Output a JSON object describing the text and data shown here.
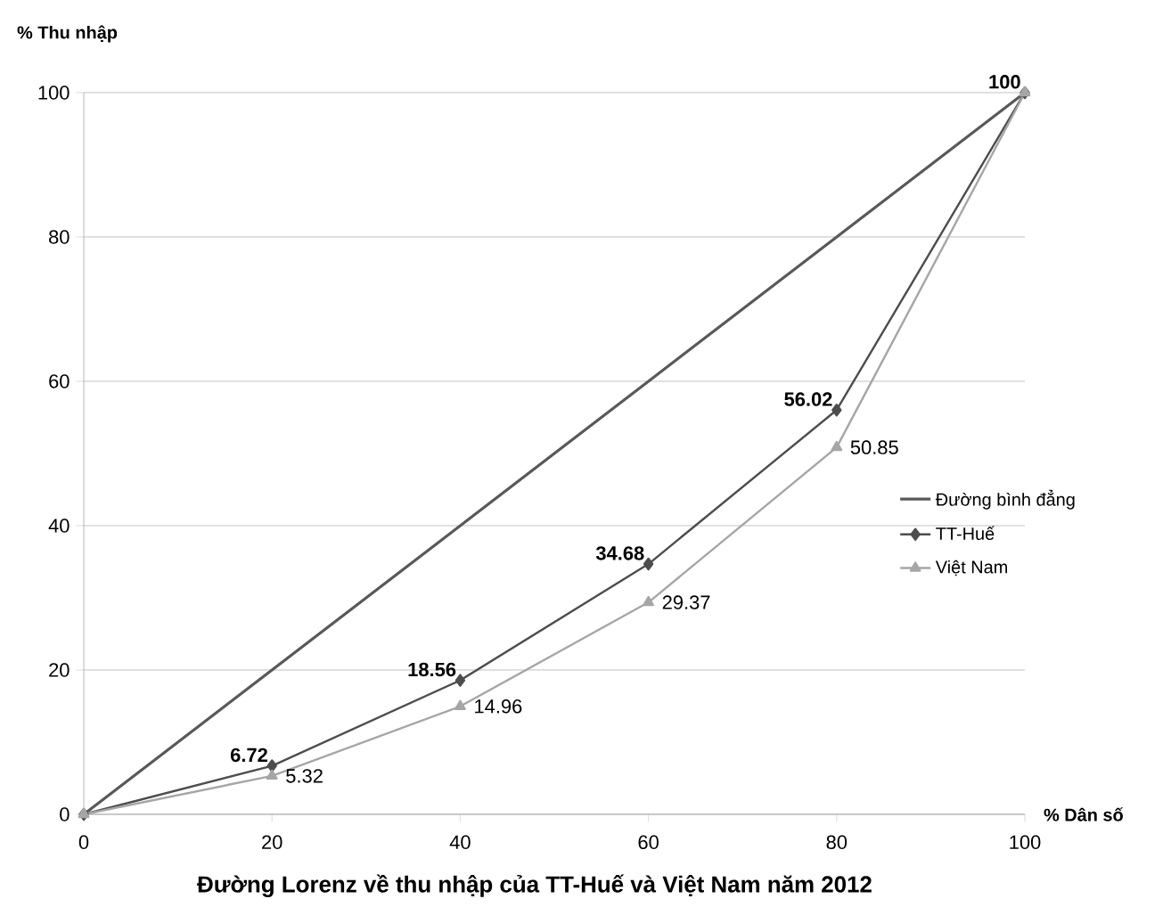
{
  "chart_data": {
    "type": "line",
    "xlabel": "% Dân số",
    "ylabel": "% Thu nhập",
    "annotations": [
      "Đường Lorenz về thu nhập của TT-Huế và Việt Nam năm 2012"
    ],
    "x": [
      0,
      20,
      40,
      60,
      80,
      100
    ],
    "series": [
      {
        "name": "Đường bình đẳng",
        "color": "#595959",
        "marker": "none",
        "values": [
          0,
          20,
          40,
          60,
          80,
          100
        ]
      },
      {
        "name": "TT-Huế",
        "color": "#4d4d4d",
        "marker": "diamond",
        "values": [
          0,
          6.72,
          18.56,
          34.68,
          56.02,
          100
        ],
        "value_labels": [
          null,
          "6.72",
          "18.56",
          "34.68",
          "56.02",
          "100"
        ]
      },
      {
        "name": "Việt Nam",
        "color": "#a6a6a6",
        "marker": "triangle",
        "values": [
          0,
          5.32,
          14.96,
          29.37,
          50.85,
          100
        ],
        "value_labels": [
          null,
          "5.32",
          "14.96",
          "29.37",
          "50.85",
          null
        ]
      }
    ],
    "xlim": [
      0,
      100
    ],
    "ylim": [
      0,
      100
    ],
    "xticks": [
      0,
      20,
      40,
      60,
      80,
      100
    ],
    "yticks": [
      0,
      20,
      40,
      60,
      80,
      100
    ],
    "grid": "y",
    "legend": "right",
    "line_style": "solid"
  }
}
